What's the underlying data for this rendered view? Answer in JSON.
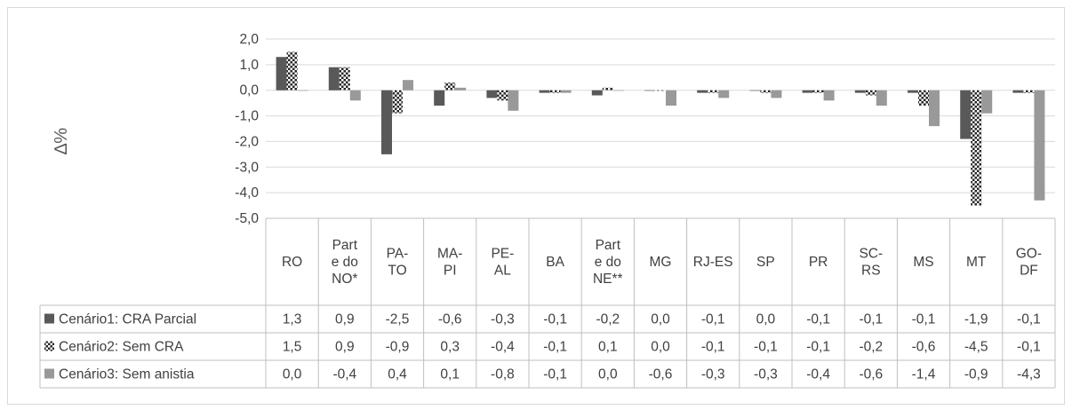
{
  "chart_data": {
    "type": "bar",
    "title": "",
    "xlabel": "",
    "ylabel": "∆%",
    "ylim": [
      -5.0,
      2.0
    ],
    "ytick_step": 1.0,
    "yticks": [
      "2,0",
      "1,0",
      "0,0",
      "-1,0",
      "-2,0",
      "-3,0",
      "-4,0",
      "-5,0"
    ],
    "grid": true,
    "legend_placement": "data-table-left",
    "categories": [
      [
        "RO"
      ],
      [
        "Part",
        "e do",
        "NO*"
      ],
      [
        "PA-",
        "TO"
      ],
      [
        "MA-",
        "PI"
      ],
      [
        "PE-",
        "AL"
      ],
      [
        "BA"
      ],
      [
        "Part",
        "e do",
        "NE**"
      ],
      [
        "MG"
      ],
      [
        "RJ-ES"
      ],
      [
        "SP"
      ],
      [
        "PR"
      ],
      [
        "SC-",
        "RS"
      ],
      [
        "MS"
      ],
      [
        "MT"
      ],
      [
        "GO-",
        "DF"
      ]
    ],
    "series": [
      {
        "name": "Cenário1: CRA Parcial",
        "color": "#595959",
        "pattern": "solid",
        "values": [
          1.3,
          0.9,
          -2.5,
          -0.6,
          -0.3,
          -0.1,
          -0.2,
          0.0,
          -0.1,
          0.0,
          -0.1,
          -0.1,
          -0.1,
          -1.9,
          -0.1
        ],
        "labels": [
          "1,3",
          "0,9",
          "-2,5",
          "-0,6",
          "-0,3",
          "-0,1",
          "-0,2",
          "0,0",
          "-0,1",
          "0,0",
          "-0,1",
          "-0,1",
          "-0,1",
          "-1,9",
          "-0,1"
        ]
      },
      {
        "name": "Cenário2: Sem CRA",
        "color": "#404040",
        "pattern": "checker",
        "values": [
          1.5,
          0.9,
          -0.9,
          0.3,
          -0.4,
          -0.1,
          0.1,
          0.0,
          -0.1,
          -0.1,
          -0.1,
          -0.2,
          -0.6,
          -4.5,
          -0.1
        ],
        "labels": [
          "1,5",
          "0,9",
          "-0,9",
          "0,3",
          "-0,4",
          "-0,1",
          "0,1",
          "0,0",
          "-0,1",
          "-0,1",
          "-0,1",
          "-0,2",
          "-0,6",
          "-4,5",
          "-0,1"
        ]
      },
      {
        "name": "Cenário3: Sem anistia",
        "color": "#999999",
        "pattern": "solid",
        "values": [
          0.0,
          -0.4,
          0.4,
          0.1,
          -0.8,
          -0.1,
          0.0,
          -0.6,
          -0.3,
          -0.3,
          -0.4,
          -0.6,
          -1.4,
          -0.9,
          -4.3
        ],
        "labels": [
          "0,0",
          "-0,4",
          "0,4",
          "0,1",
          "-0,8",
          "-0,1",
          "0,0",
          "-0,6",
          "-0,3",
          "-0,3",
          "-0,4",
          "-0,6",
          "-1,4",
          "-0,9",
          "-4,3"
        ]
      }
    ]
  }
}
